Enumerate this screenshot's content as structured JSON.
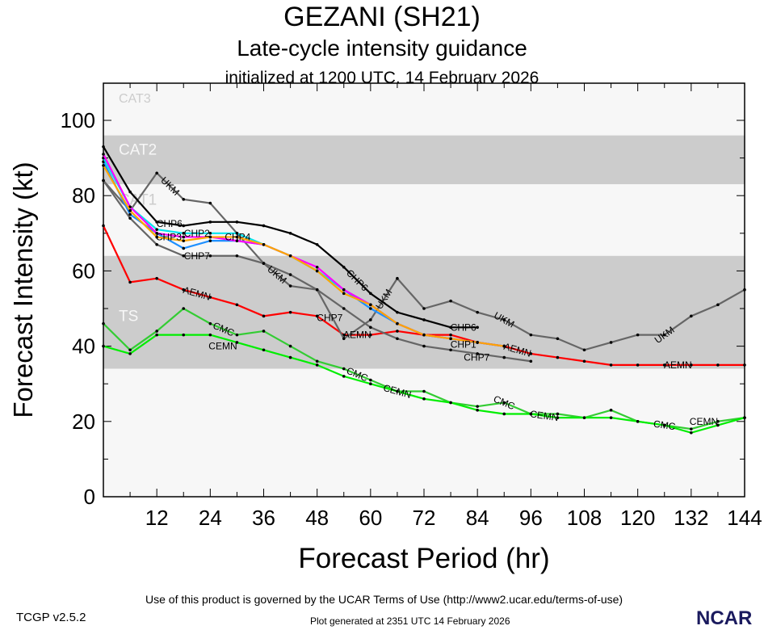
{
  "header": {
    "title": "GEZANI (SH21)",
    "subtitle": "Late-cycle intensity guidance",
    "initialized": "initialized at 1200 UTC, 14 February 2026"
  },
  "footer": {
    "terms": "Use of this product is governed by the UCAR Terms of Use (http://www2.ucar.edu/terms-of-use)",
    "generated": "Plot generated at 2351 UTC   14 February 2026",
    "version": "TCGP v2.5.2",
    "logo": "NCAR"
  },
  "chart_data": {
    "type": "line",
    "xlabel": "Forecast Period (hr)",
    "ylabel": "Forecast Intensity (kt)",
    "xlim": [
      0,
      144
    ],
    "ylim": [
      0,
      100
    ],
    "xticks": [
      12,
      24,
      36,
      48,
      60,
      72,
      84,
      96,
      108,
      120,
      132,
      144
    ],
    "yticks": [
      0,
      20,
      40,
      60,
      80,
      100
    ],
    "bands": [
      {
        "label": "CAT3",
        "from": 96,
        "to": 113,
        "color": "#f7f7f7",
        "text_color": "#cccccc"
      },
      {
        "label": "CAT2",
        "from": 83,
        "to": 96,
        "color": "#cccccc",
        "text_color": "#f7f7f7"
      },
      {
        "label": "CAT1",
        "from": 64,
        "to": 83,
        "color": "#f7f7f7",
        "text_color": "#cccccc"
      },
      {
        "label": "TS",
        "from": 34,
        "to": 64,
        "color": "#cccccc",
        "text_color": "#f7f7f7"
      },
      {
        "label": "",
        "from": 0,
        "to": 34,
        "color": "#f7f7f7",
        "text_color": "#cccccc"
      }
    ],
    "x": [
      0,
      6,
      12,
      18,
      24,
      30,
      36,
      42,
      48,
      54,
      60,
      66,
      72,
      78,
      84,
      90,
      96,
      102,
      108,
      114,
      120,
      126,
      132,
      138,
      144
    ],
    "series": [
      {
        "name": "CMC",
        "color": "#33cc33",
        "label_hours": [
          27,
          57,
          90,
          126
        ],
        "values": [
          46,
          39,
          44,
          50,
          46,
          43,
          44,
          40,
          36,
          34,
          31,
          28,
          28,
          25,
          24,
          25,
          22,
          22,
          21,
          23,
          20,
          19,
          18,
          20,
          21
        ]
      },
      {
        "name": "CEMN",
        "color": "#00ee00",
        "label_hours": [
          33,
          66,
          99,
          141
        ],
        "values": [
          40,
          38,
          43,
          43,
          43,
          41,
          39,
          37,
          35,
          32,
          30,
          28,
          26,
          25,
          23,
          22,
          22,
          21,
          21,
          21,
          20,
          19,
          17,
          19,
          21
        ]
      },
      {
        "name": "AEMN",
        "color": "#ff0000",
        "label_hours": [
          21,
          57,
          93,
          129
        ],
        "values": [
          72,
          57,
          58,
          55,
          53,
          51,
          48,
          49,
          48,
          43,
          43,
          44,
          43,
          43,
          41,
          40,
          38,
          37,
          36,
          35,
          35,
          35,
          35,
          35,
          35
        ]
      },
      {
        "name": "CHP7",
        "color": "#666666",
        "label_hours": [
          21,
          57,
          90
        ],
        "values": [
          84,
          74,
          67,
          64,
          64,
          64,
          62,
          59,
          55,
          50,
          45,
          42,
          40,
          39,
          38,
          37,
          36,
          null,
          null,
          null,
          null,
          null,
          null,
          null,
          null
        ]
      },
      {
        "name": "UKM",
        "color": "#666666",
        "label_hours": [
          15,
          39,
          63,
          90,
          126
        ],
        "values": [
          84,
          76,
          86,
          79,
          78,
          70,
          62,
          56,
          55,
          42,
          47,
          58,
          50,
          52,
          49,
          47,
          43,
          42,
          39,
          41,
          43,
          43,
          48,
          51,
          55
        ]
      },
      {
        "name": "CHP1",
        "color": "#1e90ff",
        "label_hours": [
          87
        ],
        "values": [
          89,
          75,
          70,
          66,
          68,
          68,
          67,
          64,
          60,
          55,
          50,
          46,
          43,
          42,
          41,
          40,
          null,
          null,
          null,
          null,
          null,
          null,
          null,
          null,
          null
        ]
      },
      {
        "name": "CHP2",
        "color": "#00e5ee",
        "label_hours": [
          21
        ],
        "values": [
          90,
          77,
          71,
          70,
          70,
          70,
          67,
          64,
          60,
          55,
          51,
          46,
          43,
          42,
          41,
          40,
          null,
          null,
          null,
          null,
          null,
          null,
          null,
          null,
          null
        ]
      },
      {
        "name": "CHP4",
        "color": "#ff00ff",
        "label_hours": [
          24
        ],
        "values": [
          91,
          77,
          70,
          69,
          69,
          68,
          67,
          64,
          61,
          55,
          51,
          46,
          43,
          42,
          41,
          40,
          null,
          null,
          null,
          null,
          null,
          null,
          null,
          null,
          null
        ]
      },
      {
        "name": "CHP3",
        "color": "#ffa500",
        "label_hours": [
          27
        ],
        "values": [
          88,
          76,
          69,
          68,
          69,
          69,
          67,
          64,
          60,
          54,
          51,
          46,
          43,
          42,
          41,
          40,
          null,
          null,
          null,
          null,
          null,
          null,
          null,
          null,
          null
        ]
      },
      {
        "name": "CHP6",
        "color": "#000000",
        "label_hours": [
          21,
          57,
          87
        ],
        "values": [
          93,
          81,
          73,
          72,
          73,
          73,
          72,
          70,
          67,
          61,
          54,
          49,
          47,
          45,
          45,
          null,
          null,
          null,
          null,
          null,
          null,
          null,
          null,
          null,
          null
        ]
      }
    ]
  }
}
